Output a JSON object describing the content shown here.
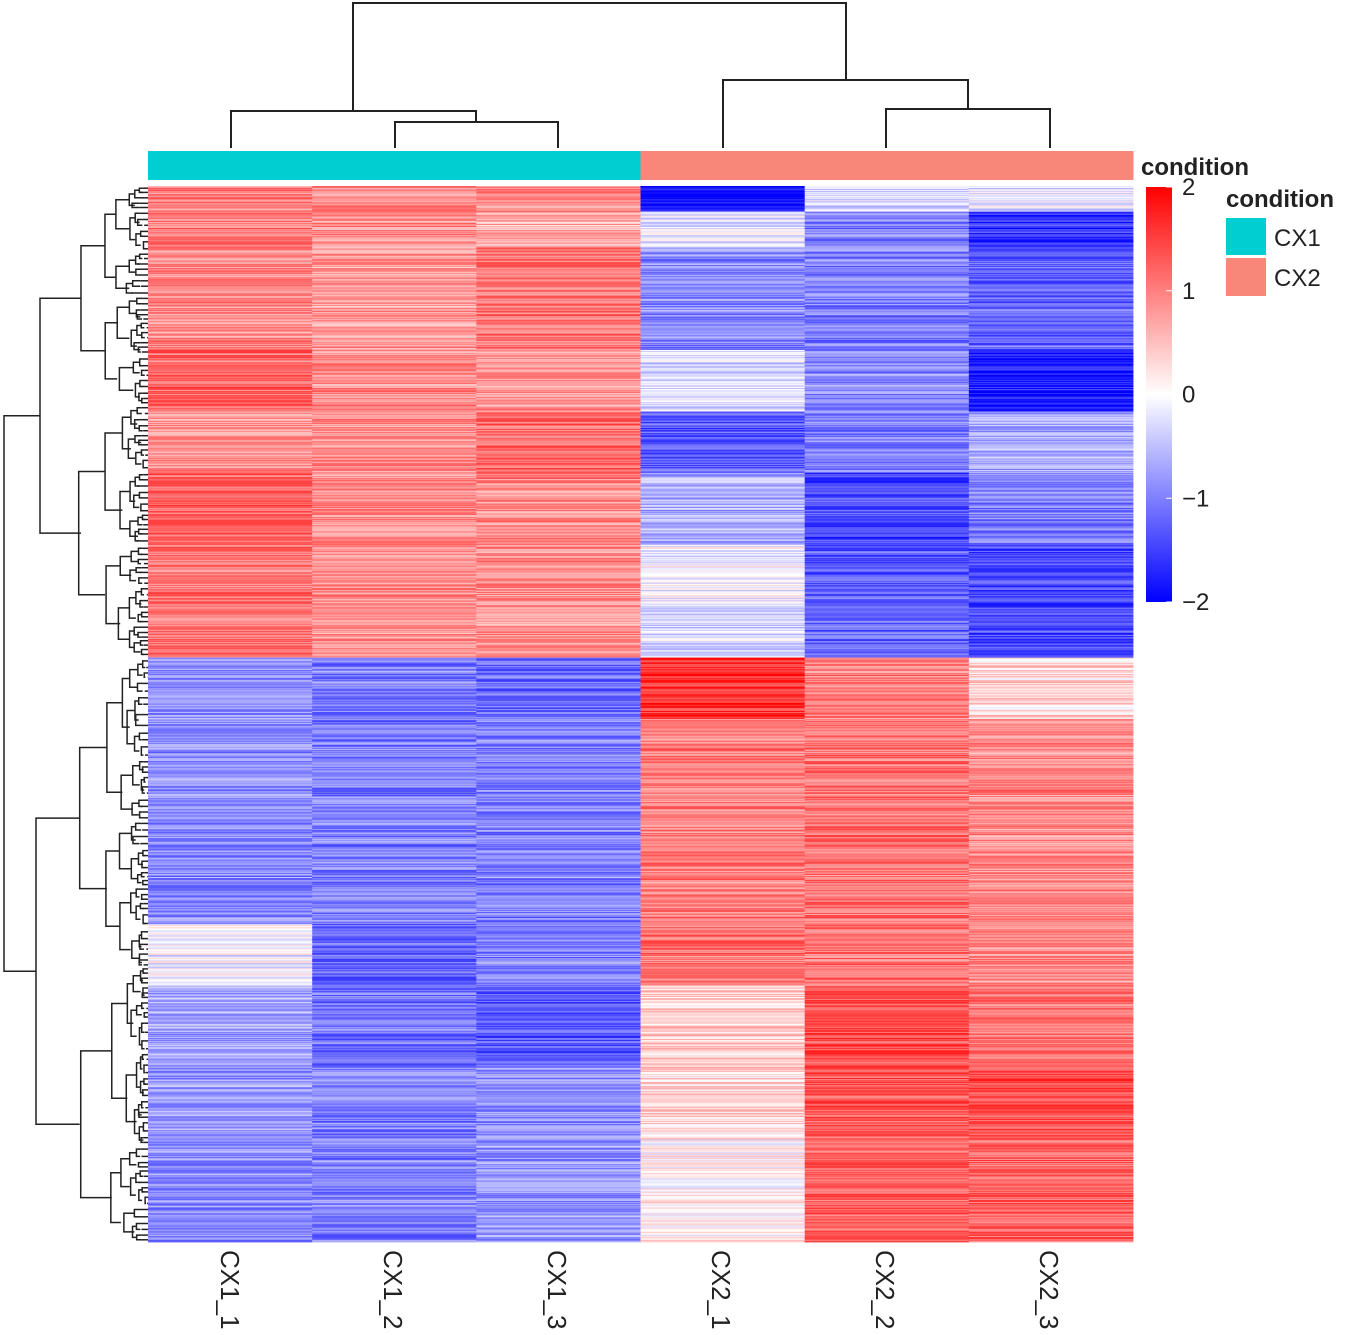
{
  "chart_data": {
    "type": "heatmap",
    "title": "",
    "columns": [
      "CX1_1",
      "CX1_2",
      "CX1_3",
      "CX2_1",
      "CX2_2",
      "CX2_3"
    ],
    "column_groups": [
      "CX1",
      "CX1",
      "CX1",
      "CX2",
      "CX2",
      "CX2"
    ],
    "annotation": {
      "title": "condition",
      "legend_title": "condition",
      "levels": [
        {
          "name": "CX1",
          "color": "#00CED1"
        },
        {
          "name": "CX2",
          "color": "#F8877A"
        }
      ]
    },
    "color_scale": {
      "min": -2,
      "max": 2,
      "colors": [
        "#0000FF",
        "#FFFFFF",
        "#FF0000"
      ],
      "ticks": [
        2,
        1,
        0,
        -1,
        -2
      ],
      "tick_labels": [
        "2",
        "1",
        "0",
        "−1",
        "−2"
      ]
    },
    "row_blocks": [
      {
        "rows": 25,
        "values": [
          1.0,
          0.9,
          0.9,
          -1.9,
          -0.3,
          -0.2
        ]
      },
      {
        "rows": 35,
        "values": [
          1.0,
          0.9,
          0.6,
          -0.2,
          -1.0,
          -1.6
        ]
      },
      {
        "rows": 100,
        "values": [
          0.9,
          0.8,
          1.1,
          -0.9,
          -1.0,
          -1.2
        ]
      },
      {
        "rows": 60,
        "values": [
          1.2,
          0.9,
          0.8,
          -0.3,
          -0.9,
          -1.8
        ]
      },
      {
        "rows": 60,
        "values": [
          0.8,
          0.9,
          1.2,
          -1.3,
          -1.0,
          -0.7
        ]
      },
      {
        "rows": 70,
        "values": [
          1.2,
          0.9,
          0.9,
          -0.6,
          -1.4,
          -1.0
        ]
      },
      {
        "rows": 60,
        "values": [
          1.1,
          0.9,
          0.9,
          -0.1,
          -1.3,
          -1.5
        ]
      },
      {
        "rows": 50,
        "values": [
          1.1,
          0.9,
          0.8,
          -0.3,
          -1.2,
          -1.4
        ]
      },
      {
        "rows": 60,
        "values": [
          -0.8,
          -1.0,
          -1.2,
          1.6,
          1.0,
          0.3
        ]
      },
      {
        "rows": 200,
        "values": [
          -0.9,
          -1.0,
          -1.0,
          1.0,
          1.1,
          0.9
        ]
      },
      {
        "rows": 60,
        "values": [
          -0.1,
          -1.2,
          -1.0,
          1.1,
          1.1,
          0.9
        ]
      },
      {
        "rows": 80,
        "values": [
          -0.7,
          -1.1,
          -1.3,
          0.4,
          1.4,
          1.1
        ]
      },
      {
        "rows": 70,
        "values": [
          -0.8,
          -1.0,
          -0.9,
          0.3,
          1.3,
          1.4
        ]
      },
      {
        "rows": 100,
        "values": [
          -0.9,
          -1.0,
          -0.8,
          0.1,
          1.2,
          1.2
        ]
      }
    ],
    "column_order_dendrogram": "((CX1_1,(CX1_2,CX1_3)),(CX2_1,(CX2_2,CX2_3)))",
    "legend_position": "right"
  }
}
